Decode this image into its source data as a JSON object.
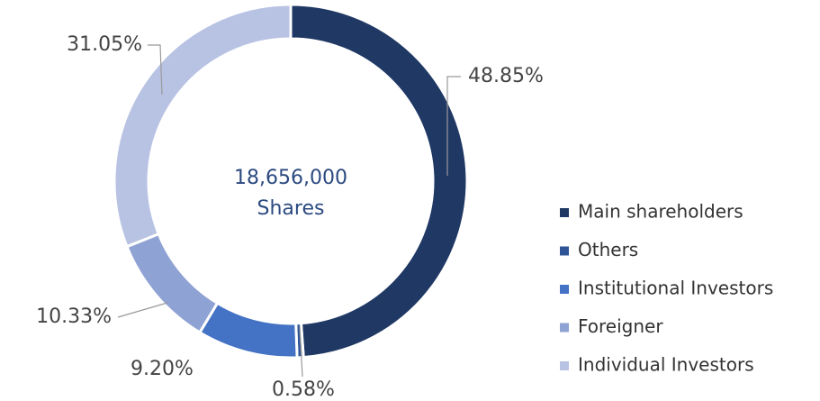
{
  "chart_data": {
    "type": "donut",
    "center_text": [
      "18,656,000",
      "Shares"
    ],
    "categories": [
      "Main shareholders",
      "Others",
      "Institutional Investors",
      "Foreigner",
      "Individual Investors"
    ],
    "values": [
      48.85,
      0.58,
      9.2,
      10.33,
      31.05
    ],
    "value_labels": [
      "48.85%",
      "0.58%",
      "9.20%",
      "10.33%",
      "31.05%"
    ],
    "colors": [
      "#1f3864",
      "#2f5597",
      "#4472c4",
      "#8fa2d4",
      "#b8c3e3"
    ],
    "legend": "right"
  }
}
